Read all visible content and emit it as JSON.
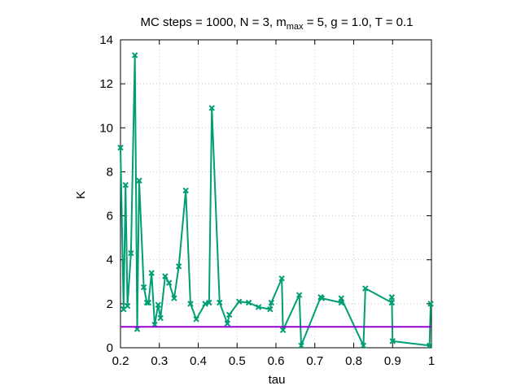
{
  "chart_data": {
    "type": "line",
    "title": {
      "prefix": "MC steps = 1000, N = 3, m",
      "subscript": "max",
      "suffix": " = 5, g = 1.0, T = 0.1"
    },
    "xlabel": "tau",
    "ylabel": "K",
    "xlim": [
      0.2,
      1.0
    ],
    "ylim": [
      0,
      14
    ],
    "x_ticks": [
      0.2,
      0.3,
      0.4,
      0.5,
      0.6,
      0.7,
      0.8,
      0.9,
      1.0
    ],
    "x_tick_labels": [
      "0.2",
      "0.3",
      "0.4",
      "0.5",
      "0.6",
      "0.7",
      "0.8",
      "0.9",
      "1"
    ],
    "y_ticks": [
      0,
      2,
      4,
      6,
      8,
      10,
      12,
      14
    ],
    "y_tick_labels": [
      "0",
      "2",
      "4",
      "6",
      "8",
      "10",
      "12",
      "14"
    ],
    "grid": true,
    "series": [
      {
        "color": "#009e73",
        "marker": "x",
        "points": [
          [
            0.2,
            9.1
          ],
          [
            0.208,
            1.75
          ],
          [
            0.213,
            7.4
          ],
          [
            0.218,
            1.9
          ],
          [
            0.227,
            4.3
          ],
          [
            0.237,
            13.3
          ],
          [
            0.243,
            0.85
          ],
          [
            0.248,
            7.6
          ],
          [
            0.26,
            2.75
          ],
          [
            0.268,
            2.05
          ],
          [
            0.272,
            2.05
          ],
          [
            0.28,
            3.4
          ],
          [
            0.288,
            1.05
          ],
          [
            0.297,
            1.95
          ],
          [
            0.303,
            1.35
          ],
          [
            0.315,
            3.25
          ],
          [
            0.325,
            2.95
          ],
          [
            0.338,
            2.25
          ],
          [
            0.35,
            3.7
          ],
          [
            0.368,
            7.15
          ],
          [
            0.38,
            2.0
          ],
          [
            0.395,
            1.3
          ],
          [
            0.418,
            2.0
          ],
          [
            0.428,
            2.05
          ],
          [
            0.435,
            10.9
          ],
          [
            0.455,
            2.05
          ],
          [
            0.475,
            1.1
          ],
          [
            0.48,
            1.5
          ],
          [
            0.505,
            2.1
          ],
          [
            0.53,
            2.05
          ],
          [
            0.555,
            1.85
          ],
          [
            0.585,
            1.75
          ],
          [
            0.588,
            2.05
          ],
          [
            0.615,
            3.15
          ],
          [
            0.618,
            0.8
          ],
          [
            0.66,
            2.4
          ],
          [
            0.665,
            0.1
          ],
          [
            0.715,
            2.3
          ],
          [
            0.718,
            2.25
          ],
          [
            0.768,
            2.05
          ],
          [
            0.768,
            2.25
          ],
          [
            0.825,
            0.1
          ],
          [
            0.83,
            2.7
          ],
          [
            0.898,
            2.05
          ],
          [
            0.898,
            2.3
          ],
          [
            0.9,
            0.3
          ],
          [
            0.995,
            0.1
          ],
          [
            0.998,
            2.0
          ]
        ]
      },
      {
        "color": "#9400d3",
        "marker": "none",
        "points": [
          [
            0.2,
            0.95
          ],
          [
            1.0,
            0.95
          ]
        ]
      }
    ]
  }
}
